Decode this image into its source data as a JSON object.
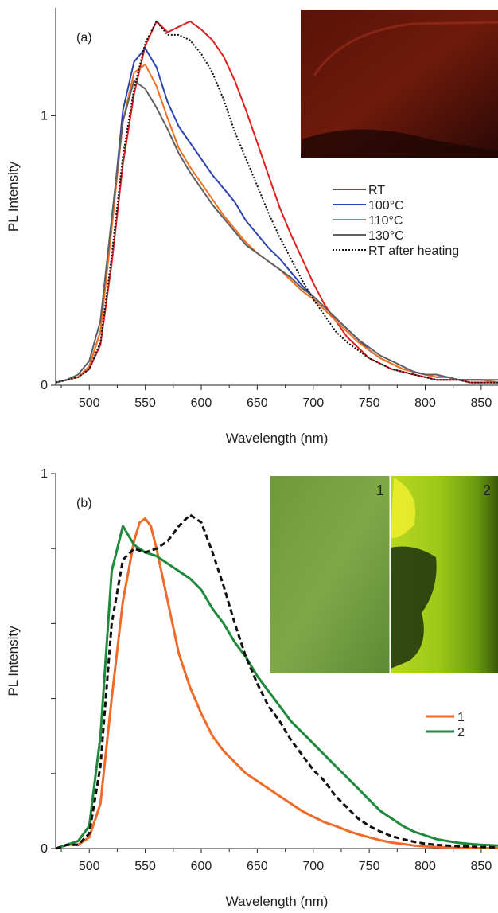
{
  "chart_data": [
    {
      "type": "line",
      "panel_label": "(a)",
      "xlabel": "Wavelength (nm)",
      "ylabel": "PL Intensity",
      "xlim": [
        470,
        865
      ],
      "ylim": [
        0,
        1.4
      ],
      "xticks": [
        500,
        550,
        600,
        650,
        700,
        750,
        800,
        850
      ],
      "xtick_labels": [
        "500",
        "550",
        "600",
        "650",
        "700",
        "750",
        "800",
        "850"
      ],
      "yticks": [
        0,
        1
      ],
      "ytick_labels": [
        "0",
        "1"
      ],
      "grid": false,
      "legend_position": "center-right",
      "inset": {
        "content": "photo",
        "tone": "dark-red"
      },
      "series": [
        {
          "name": "RT",
          "color": "#e02020",
          "dash": "solid",
          "x": [
            470,
            480,
            490,
            500,
            510,
            520,
            530,
            540,
            550,
            560,
            570,
            580,
            590,
            600,
            610,
            620,
            630,
            640,
            650,
            660,
            670,
            680,
            690,
            700,
            710,
            720,
            730,
            740,
            750,
            760,
            770,
            780,
            790,
            800,
            810,
            820,
            830,
            840,
            850,
            865
          ],
          "y": [
            0.01,
            0.02,
            0.03,
            0.06,
            0.15,
            0.45,
            0.82,
            1.08,
            1.26,
            1.35,
            1.31,
            1.33,
            1.35,
            1.32,
            1.28,
            1.22,
            1.13,
            1.02,
            0.9,
            0.78,
            0.66,
            0.56,
            0.47,
            0.38,
            0.3,
            0.24,
            0.18,
            0.14,
            0.1,
            0.08,
            0.06,
            0.05,
            0.04,
            0.03,
            0.02,
            0.02,
            0.02,
            0.01,
            0.01,
            0.01
          ]
        },
        {
          "name": "100°C",
          "color": "#2b44b0",
          "dash": "solid",
          "x": [
            470,
            480,
            490,
            500,
            510,
            520,
            530,
            540,
            550,
            560,
            570,
            580,
            590,
            600,
            610,
            620,
            630,
            640,
            650,
            660,
            670,
            680,
            690,
            700,
            710,
            720,
            730,
            740,
            750,
            760,
            770,
            780,
            790,
            800,
            810,
            820,
            830,
            840,
            850,
            865
          ],
          "y": [
            0.01,
            0.02,
            0.03,
            0.07,
            0.2,
            0.6,
            1.02,
            1.2,
            1.25,
            1.18,
            1.05,
            0.96,
            0.9,
            0.84,
            0.78,
            0.73,
            0.68,
            0.61,
            0.56,
            0.51,
            0.47,
            0.42,
            0.37,
            0.33,
            0.29,
            0.25,
            0.21,
            0.17,
            0.13,
            0.1,
            0.08,
            0.06,
            0.05,
            0.04,
            0.03,
            0.03,
            0.02,
            0.02,
            0.02,
            0.01
          ]
        },
        {
          "name": "110°C",
          "color": "#f07020",
          "dash": "solid",
          "x": [
            470,
            480,
            490,
            500,
            510,
            520,
            530,
            540,
            550,
            560,
            570,
            580,
            590,
            600,
            610,
            620,
            630,
            640,
            650,
            660,
            670,
            680,
            690,
            700,
            710,
            720,
            730,
            740,
            750,
            760,
            770,
            780,
            790,
            800,
            810,
            820,
            830,
            840,
            850,
            865
          ],
          "y": [
            0.01,
            0.02,
            0.03,
            0.07,
            0.2,
            0.58,
            0.98,
            1.16,
            1.19,
            1.11,
            0.99,
            0.88,
            0.81,
            0.75,
            0.69,
            0.63,
            0.58,
            0.53,
            0.49,
            0.46,
            0.43,
            0.39,
            0.35,
            0.32,
            0.28,
            0.24,
            0.2,
            0.16,
            0.13,
            0.1,
            0.08,
            0.06,
            0.05,
            0.04,
            0.03,
            0.03,
            0.02,
            0.02,
            0.02,
            0.01
          ]
        },
        {
          "name": "130°C",
          "color": "#606060",
          "dash": "solid",
          "x": [
            470,
            480,
            490,
            500,
            510,
            520,
            530,
            540,
            550,
            560,
            570,
            580,
            590,
            600,
            610,
            620,
            630,
            640,
            650,
            660,
            670,
            680,
            690,
            700,
            710,
            720,
            730,
            740,
            750,
            760,
            770,
            780,
            790,
            800,
            810,
            820,
            830,
            840,
            850,
            865
          ],
          "y": [
            0.01,
            0.02,
            0.04,
            0.09,
            0.24,
            0.62,
            0.98,
            1.13,
            1.1,
            1.03,
            0.95,
            0.86,
            0.79,
            0.73,
            0.67,
            0.62,
            0.57,
            0.52,
            0.49,
            0.46,
            0.43,
            0.4,
            0.36,
            0.33,
            0.29,
            0.25,
            0.21,
            0.17,
            0.14,
            0.11,
            0.09,
            0.07,
            0.05,
            0.04,
            0.04,
            0.03,
            0.02,
            0.02,
            0.02,
            0.02
          ]
        },
        {
          "name": "RT after heating",
          "color": "#111111",
          "dash": "dotted",
          "x": [
            470,
            480,
            490,
            500,
            510,
            520,
            530,
            540,
            550,
            560,
            570,
            580,
            590,
            600,
            610,
            620,
            630,
            640,
            650,
            660,
            670,
            680,
            690,
            700,
            710,
            720,
            730,
            740,
            750,
            760,
            770,
            780,
            790,
            800,
            810,
            820,
            830,
            840,
            850,
            865
          ],
          "y": [
            0.01,
            0.02,
            0.03,
            0.06,
            0.16,
            0.48,
            0.85,
            1.1,
            1.27,
            1.35,
            1.3,
            1.3,
            1.28,
            1.23,
            1.16,
            1.06,
            0.94,
            0.84,
            0.74,
            0.64,
            0.55,
            0.47,
            0.39,
            0.32,
            0.26,
            0.2,
            0.16,
            0.13,
            0.1,
            0.08,
            0.06,
            0.05,
            0.04,
            0.03,
            0.02,
            0.02,
            0.02,
            0.01,
            0.01,
            0.01
          ]
        }
      ]
    },
    {
      "type": "line",
      "panel_label": "(b)",
      "xlabel": "Wavelength (nm)",
      "ylabel": "PL Intensity",
      "xlim": [
        470,
        865
      ],
      "ylim": [
        0,
        1
      ],
      "xticks": [
        500,
        550,
        600,
        650,
        700,
        750,
        800,
        850
      ],
      "xtick_labels": [
        "500",
        "550",
        "600",
        "650",
        "700",
        "750",
        "800",
        "850"
      ],
      "yticks": [
        0,
        0.2,
        0.4,
        0.6,
        0.8,
        1
      ],
      "ytick_labels": [
        "0",
        "",
        "",
        "",
        "",
        "1"
      ],
      "grid": false,
      "legend_position": "right",
      "inset": {
        "content": "two photos",
        "tone": "green",
        "labels": [
          "1",
          "2"
        ]
      },
      "series": [
        {
          "name": "1",
          "color": "#f06a28",
          "dash": "solid",
          "x": [
            470,
            480,
            490,
            500,
            510,
            520,
            530,
            540,
            545,
            550,
            555,
            560,
            570,
            580,
            590,
            600,
            610,
            620,
            630,
            640,
            650,
            660,
            670,
            680,
            690,
            700,
            710,
            720,
            730,
            740,
            750,
            760,
            770,
            780,
            790,
            800,
            810,
            820,
            830,
            840,
            850,
            865
          ],
          "y": [
            0.0,
            0.01,
            0.01,
            0.03,
            0.12,
            0.4,
            0.66,
            0.82,
            0.87,
            0.88,
            0.86,
            0.8,
            0.66,
            0.52,
            0.43,
            0.36,
            0.3,
            0.26,
            0.23,
            0.2,
            0.18,
            0.16,
            0.14,
            0.12,
            0.1,
            0.085,
            0.07,
            0.06,
            0.048,
            0.038,
            0.03,
            0.022,
            0.016,
            0.012,
            0.008,
            0.006,
            0.004,
            0.003,
            0.002,
            0.002,
            0.001,
            0.001
          ]
        },
        {
          "name": "2",
          "color": "#1f8a3c",
          "dash": "solid",
          "x": [
            470,
            480,
            490,
            500,
            510,
            520,
            530,
            540,
            550,
            560,
            570,
            580,
            590,
            600,
            610,
            620,
            630,
            640,
            650,
            660,
            670,
            680,
            690,
            700,
            710,
            720,
            730,
            740,
            750,
            760,
            770,
            780,
            790,
            800,
            810,
            820,
            830,
            840,
            850,
            865
          ],
          "y": [
            0.0,
            0.01,
            0.02,
            0.06,
            0.3,
            0.74,
            0.86,
            0.81,
            0.79,
            0.78,
            0.76,
            0.74,
            0.72,
            0.69,
            0.64,
            0.6,
            0.55,
            0.51,
            0.46,
            0.42,
            0.38,
            0.34,
            0.31,
            0.28,
            0.25,
            0.22,
            0.19,
            0.16,
            0.13,
            0.1,
            0.08,
            0.06,
            0.045,
            0.035,
            0.025,
            0.02,
            0.015,
            0.012,
            0.01,
            0.008
          ]
        },
        {
          "name": "",
          "color": "#111111",
          "dash": "dashed",
          "x": [
            470,
            480,
            490,
            500,
            510,
            520,
            530,
            540,
            550,
            560,
            570,
            580,
            590,
            600,
            610,
            620,
            630,
            640,
            650,
            660,
            670,
            680,
            690,
            700,
            710,
            720,
            730,
            740,
            750,
            760,
            770,
            780,
            790,
            800,
            810,
            820,
            830,
            840,
            850,
            865
          ],
          "y": [
            0.0,
            0.01,
            0.01,
            0.04,
            0.22,
            0.6,
            0.77,
            0.8,
            0.79,
            0.8,
            0.82,
            0.86,
            0.89,
            0.87,
            0.79,
            0.7,
            0.6,
            0.51,
            0.44,
            0.38,
            0.34,
            0.29,
            0.25,
            0.21,
            0.18,
            0.14,
            0.11,
            0.08,
            0.06,
            0.045,
            0.033,
            0.025,
            0.018,
            0.013,
            0.01,
            0.008,
            0.006,
            0.005,
            0.004,
            0.003
          ]
        }
      ]
    }
  ]
}
